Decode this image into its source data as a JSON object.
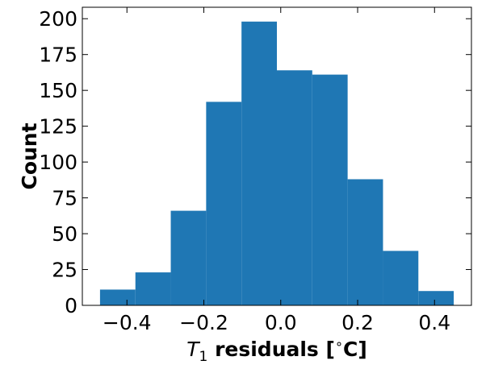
{
  "chart_data": {
    "type": "bar",
    "title": "",
    "xlabel": {
      "symbol": "T",
      "subscript": "1",
      "text": " residuals [",
      "degree": "∘",
      "unit": "C]"
    },
    "ylabel": "Count",
    "bin_edges": [
      -0.47,
      -0.378,
      -0.286,
      -0.194,
      -0.102,
      -0.01,
      0.082,
      0.174,
      0.266,
      0.358,
      0.45
    ],
    "counts": [
      11,
      23,
      66,
      142,
      198,
      164,
      161,
      88,
      38,
      10
    ],
    "bar_color": "#1f77b4",
    "xlim": [
      -0.516,
      0.496
    ],
    "ylim": [
      0,
      208
    ],
    "xticks": [
      -0.4,
      -0.2,
      0.0,
      0.2,
      0.4
    ],
    "xtick_labels": [
      "−0.4",
      "−0.2",
      "0.0",
      "0.2",
      "0.4"
    ],
    "yticks": [
      0,
      25,
      50,
      75,
      100,
      125,
      150,
      175,
      200
    ],
    "ytick_labels": [
      "0",
      "25",
      "50",
      "75",
      "100",
      "125",
      "150",
      "175",
      "200"
    ],
    "tick_direction": "in",
    "ticks_on_all_sides": true,
    "grid": false,
    "legend": false
  }
}
